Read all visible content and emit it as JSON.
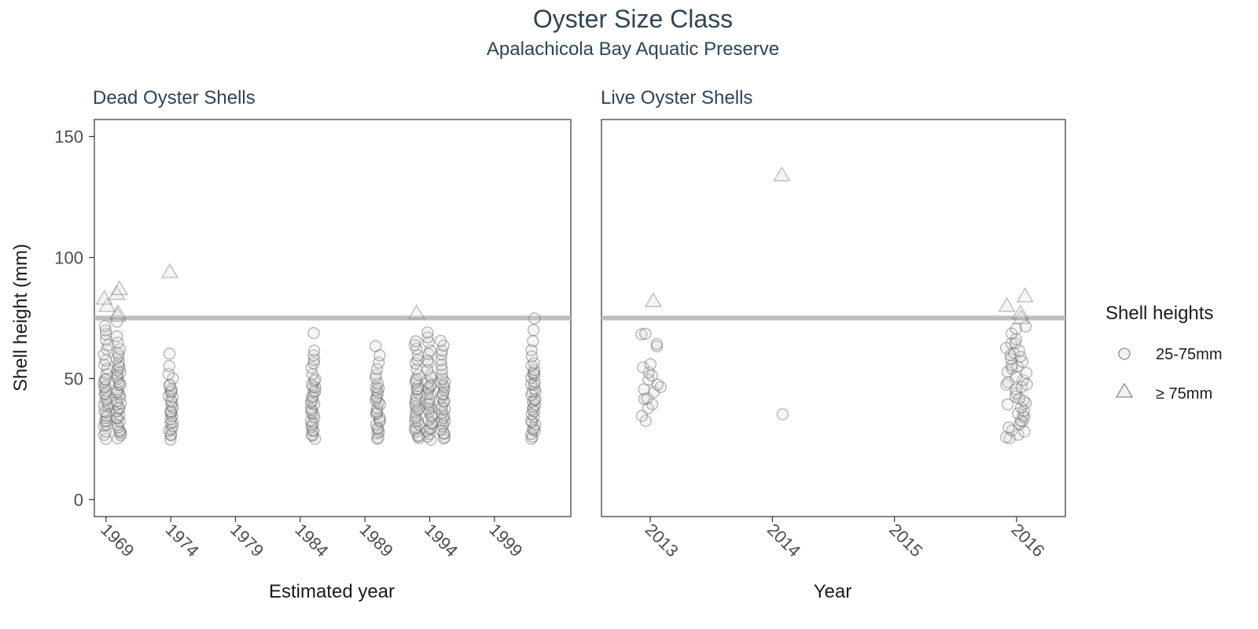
{
  "chart_data": {
    "type": "scatter",
    "title": "Oyster Size Class",
    "subtitle": "Apalachicola Bay Aquatic Preserve",
    "ylabel": "Shell height (mm)",
    "ylim": [
      -7,
      157
    ],
    "y_ticks": [
      0,
      50,
      100,
      150
    ],
    "reference_line_y": 75,
    "reference_line_color": "#bebebe",
    "marker_fill": "#d9d9d9",
    "marker_stroke": "#595959",
    "legend": {
      "title": "Shell heights",
      "position": "right",
      "items": [
        {
          "label": "25-75mm",
          "shape": "circle"
        },
        {
          "label": "≥ 75mm",
          "shape": "triangle"
        }
      ]
    },
    "panels": [
      {
        "name": "Dead Oyster Shells",
        "xlabel": "Estimated year",
        "xlim": [
          1968.1,
          2004.9
        ],
        "x_ticks": [
          1969,
          1974,
          1979,
          1984,
          1989,
          1994,
          1999
        ],
        "groups": [
          {
            "x": 1969,
            "y": [
              25,
              27,
              28,
              30,
              31,
              32,
              33,
              34,
              35,
              36,
              37,
              38,
              39,
              40,
              41,
              42,
              43,
              44,
              45,
              46,
              47,
              48,
              49,
              50,
              52,
              54,
              56,
              58,
              60,
              62,
              64,
              66,
              68,
              70,
              72
            ],
            "triangles": [
              80,
              83
            ]
          },
          {
            "x": 1970,
            "y": [
              25,
              26,
              27,
              28,
              29,
              30,
              31,
              32,
              33,
              34,
              35,
              36,
              37,
              38,
              39,
              40,
              41,
              42,
              43,
              44,
              45,
              46,
              47,
              48,
              49,
              50,
              51,
              52,
              53,
              54,
              55,
              56,
              57,
              58,
              59,
              60,
              62,
              65,
              67,
              74
            ],
            "triangles": [
              76,
              77,
              85,
              87
            ]
          },
          {
            "x": 1974,
            "y": [
              25,
              26,
              27,
              28,
              29,
              30,
              31,
              32,
              33,
              34,
              35,
              36,
              37,
              38,
              39,
              40,
              41,
              42,
              43,
              44,
              45,
              46,
              47,
              48,
              50,
              52,
              55,
              60
            ],
            "triangles": [
              94
            ]
          },
          {
            "x": 1985,
            "y": [
              25,
              26,
              27,
              28,
              29,
              30,
              31,
              32,
              33,
              34,
              35,
              36,
              37,
              38,
              39,
              40,
              41,
              42,
              43,
              44,
              45,
              46,
              47,
              48,
              49,
              50,
              52,
              54,
              56,
              58,
              60,
              61,
              69
            ],
            "triangles": []
          },
          {
            "x": 1990,
            "y": [
              25,
              26,
              27,
              28,
              29,
              30,
              31,
              32,
              33,
              34,
              35,
              36,
              37,
              38,
              39,
              40,
              41,
              42,
              43,
              44,
              45,
              46,
              47,
              48,
              50,
              52,
              54,
              56,
              60,
              63
            ],
            "triangles": []
          },
          {
            "x": 1993,
            "y": [
              25,
              26,
              27,
              28,
              29,
              30,
              31,
              32,
              33,
              34,
              35,
              36,
              37,
              38,
              39,
              40,
              41,
              42,
              43,
              44,
              45,
              46,
              47,
              48,
              49,
              50,
              52,
              54,
              56,
              58,
              60,
              62,
              64,
              66
            ],
            "triangles": [
              77
            ]
          },
          {
            "x": 1994,
            "y": [
              25,
              26,
              27,
              28,
              29,
              30,
              31,
              32,
              33,
              34,
              35,
              36,
              37,
              38,
              39,
              40,
              41,
              42,
              43,
              44,
              45,
              46,
              47,
              48,
              49,
              50,
              52,
              54,
              56,
              58,
              60,
              62,
              65,
              67,
              69
            ],
            "triangles": []
          },
          {
            "x": 1995,
            "y": [
              25,
              26,
              27,
              28,
              29,
              30,
              31,
              32,
              33,
              34,
              35,
              36,
              37,
              38,
              39,
              40,
              41,
              42,
              43,
              44,
              45,
              46,
              47,
              48,
              49,
              50,
              52,
              54,
              56,
              58,
              60,
              62,
              64,
              66
            ],
            "triangles": []
          },
          {
            "x": 2002,
            "y": [
              25,
              26,
              27,
              28,
              29,
              30,
              31,
              32,
              33,
              34,
              35,
              36,
              37,
              38,
              39,
              40,
              41,
              42,
              43,
              44,
              45,
              46,
              47,
              48,
              49,
              50,
              51,
              52,
              53,
              54,
              55,
              57,
              59,
              62,
              65,
              70,
              75
            ],
            "triangles": []
          }
        ]
      },
      {
        "name": "Live Oyster Shells",
        "xlabel": "Year",
        "xlim": [
          2012.6,
          2016.4
        ],
        "x_ticks": [
          2013,
          2014,
          2015,
          2016
        ],
        "groups": [
          {
            "x": 2013,
            "y": [
              33,
              35,
              38,
              40,
              41,
              42,
              44,
              46,
              47,
              48,
              50,
              51,
              52,
              55,
              56,
              63,
              64,
              68,
              68
            ],
            "triangles": [
              82
            ]
          },
          {
            "x": 2014,
            "y": [
              35
            ],
            "triangles": [
              134
            ]
          },
          {
            "x": 2016,
            "y": [
              25,
              26,
              27,
              28,
              29,
              30,
              31,
              32,
              33,
              34,
              35,
              36,
              37,
              38,
              39,
              40,
              41,
              42,
              43,
              44,
              45,
              46,
              47,
              48,
              49,
              50,
              51,
              52,
              53,
              54,
              55,
              56,
              57,
              58,
              59,
              60,
              61,
              62,
              63,
              64,
              65,
              66,
              68,
              70,
              72
            ],
            "triangles": [
              75,
              77,
              80,
              84
            ]
          }
        ]
      }
    ]
  }
}
